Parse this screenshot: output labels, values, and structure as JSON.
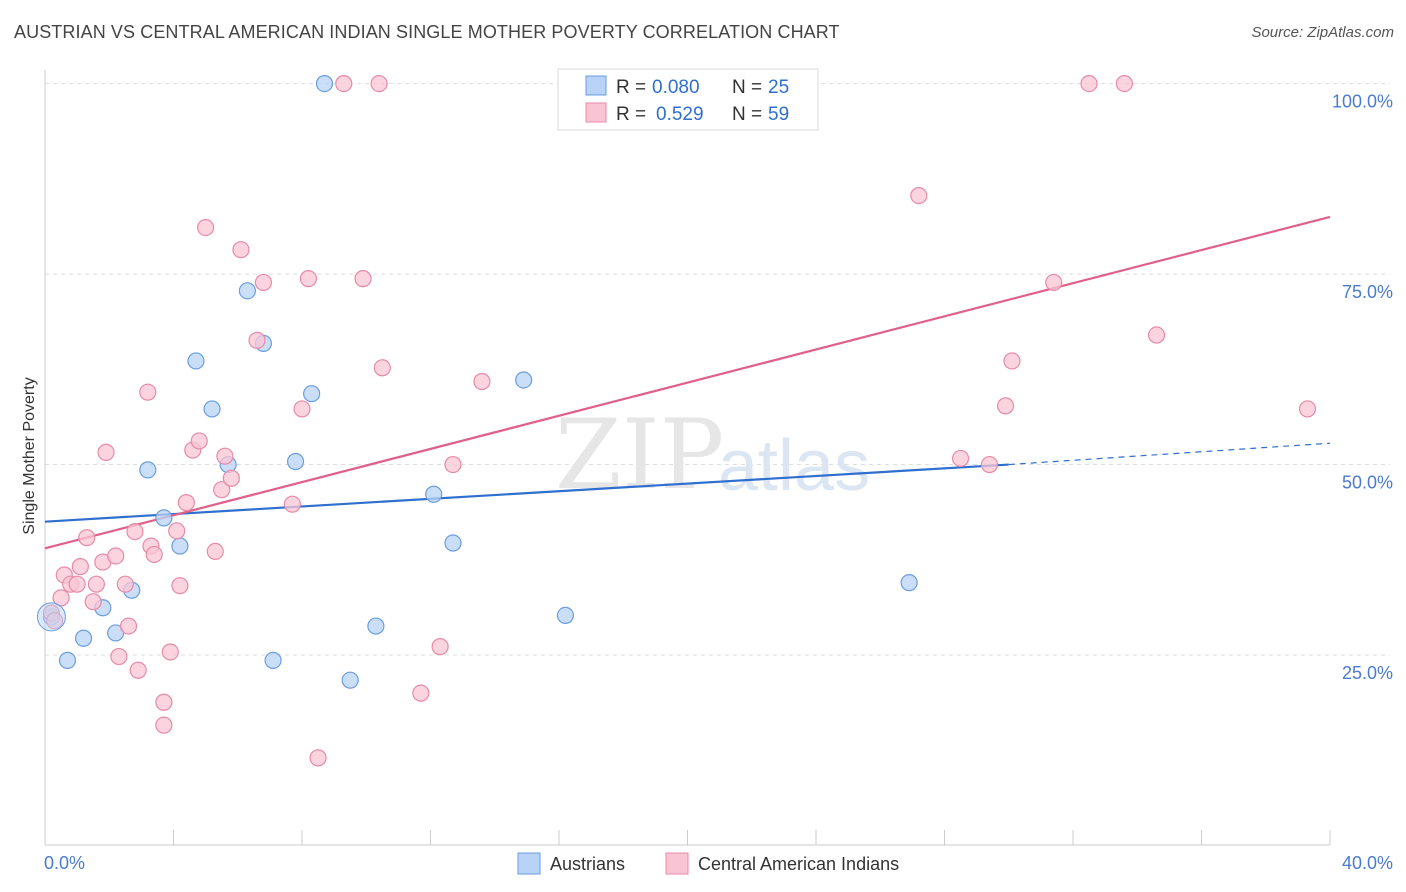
{
  "title": "AUSTRIAN VS CENTRAL AMERICAN INDIAN SINGLE MOTHER POVERTY CORRELATION CHART",
  "source": "Source: ZipAtlas.com",
  "watermark": {
    "zip": "ZIP",
    "atlas": "atlas"
  },
  "colors": {
    "blue_fill": "#b8d3f5",
    "blue_stroke": "#6a9ee0",
    "blue_line": "#2f6fcf",
    "pink_fill": "#f9c5d4",
    "pink_stroke": "#e88aa8",
    "pink_line": "#e0608a",
    "axis_text": "#4a7bd0"
  },
  "legend": {
    "rows": [
      {
        "r_label": "R = ",
        "r_value": "0.080",
        "n_label": "N = ",
        "n_value": "25",
        "series": "blue"
      },
      {
        "r_label": "R = ",
        "r_value": "0.529",
        "n_label": "N = ",
        "n_value": "59",
        "series": "pink"
      }
    ]
  },
  "chart_data": {
    "type": "scatter",
    "title": "AUSTRIAN VS CENTRAL AMERICAN INDIAN SINGLE MOTHER POVERTY CORRELATION CHART",
    "xlabel": "",
    "ylabel": "Single Mother Poverty",
    "xlim": [
      0,
      40
    ],
    "ylim": [
      0,
      105
    ],
    "x_tick_labels": [
      "0.0%",
      "40.0%"
    ],
    "y_ticks": [
      25,
      50,
      75,
      100
    ],
    "y_tick_labels": [
      "25.0%",
      "50.0%",
      "75.0%",
      "100.0%"
    ],
    "grid": true,
    "legend_position": "top-center",
    "series": [
      {
        "name": "Austrians",
        "color": "blue",
        "points": [
          [
            0.2,
            30.0
          ],
          [
            0.7,
            24.3
          ],
          [
            1.2,
            27.2
          ],
          [
            1.8,
            31.2
          ],
          [
            2.2,
            27.9
          ],
          [
            2.7,
            33.5
          ],
          [
            3.2,
            49.3
          ],
          [
            3.7,
            43.0
          ],
          [
            4.2,
            39.3
          ],
          [
            4.7,
            63.6
          ],
          [
            5.2,
            57.3
          ],
          [
            5.7,
            50.0
          ],
          [
            6.3,
            72.8
          ],
          [
            6.8,
            65.9
          ],
          [
            7.1,
            24.3
          ],
          [
            7.8,
            50.4
          ],
          [
            8.3,
            59.3
          ],
          [
            8.7,
            100.0
          ],
          [
            9.5,
            21.7
          ],
          [
            10.3,
            28.8
          ],
          [
            12.1,
            46.1
          ],
          [
            12.7,
            39.7
          ],
          [
            14.9,
            61.1
          ],
          [
            16.2,
            30.2
          ],
          [
            26.9,
            34.5
          ]
        ],
        "trend": {
          "x": [
            0,
            30
          ],
          "y": [
            42.5,
            50.0
          ],
          "dashed_to": [
            40,
            52.8
          ]
        }
      },
      {
        "name": "Central American Indians",
        "color": "pink",
        "points": [
          [
            0.2,
            30.5
          ],
          [
            0.3,
            29.5
          ],
          [
            0.5,
            32.5
          ],
          [
            0.6,
            35.5
          ],
          [
            0.8,
            34.3
          ],
          [
            1.0,
            34.3
          ],
          [
            1.1,
            36.6
          ],
          [
            1.3,
            40.4
          ],
          [
            1.5,
            32.0
          ],
          [
            1.6,
            34.3
          ],
          [
            1.8,
            37.2
          ],
          [
            1.9,
            51.6
          ],
          [
            2.2,
            38.0
          ],
          [
            2.3,
            24.8
          ],
          [
            2.5,
            34.3
          ],
          [
            2.6,
            28.8
          ],
          [
            2.8,
            41.2
          ],
          [
            2.9,
            23.0
          ],
          [
            3.2,
            59.5
          ],
          [
            3.3,
            39.3
          ],
          [
            3.4,
            38.2
          ],
          [
            3.7,
            18.8
          ],
          [
            3.7,
            15.8
          ],
          [
            3.9,
            25.4
          ],
          [
            4.1,
            41.3
          ],
          [
            4.2,
            34.1
          ],
          [
            4.4,
            45.0
          ],
          [
            4.6,
            51.9
          ],
          [
            4.8,
            53.1
          ],
          [
            5.0,
            81.1
          ],
          [
            5.3,
            38.6
          ],
          [
            5.5,
            46.7
          ],
          [
            5.6,
            51.1
          ],
          [
            5.8,
            48.2
          ],
          [
            6.1,
            78.2
          ],
          [
            6.6,
            66.3
          ],
          [
            6.8,
            73.9
          ],
          [
            7.7,
            44.8
          ],
          [
            8.0,
            57.3
          ],
          [
            8.2,
            74.4
          ],
          [
            9.3,
            100.0
          ],
          [
            9.9,
            74.4
          ],
          [
            10.4,
            100.0
          ],
          [
            10.5,
            62.7
          ],
          [
            11.7,
            20.0
          ],
          [
            12.3,
            26.1
          ],
          [
            12.7,
            50.0
          ],
          [
            13.6,
            60.9
          ],
          [
            8.5,
            11.5
          ],
          [
            27.2,
            85.3
          ],
          [
            28.5,
            50.8
          ],
          [
            29.4,
            50.0
          ],
          [
            29.9,
            57.7
          ],
          [
            30.1,
            63.6
          ],
          [
            31.4,
            73.9
          ],
          [
            32.5,
            100.0
          ],
          [
            33.6,
            100.0
          ],
          [
            34.6,
            67.0
          ],
          [
            39.3,
            57.3
          ]
        ],
        "trend": {
          "x": [
            0,
            40
          ],
          "y": [
            39.0,
            82.5
          ]
        }
      }
    ],
    "bottom_legend": [
      "Austrians",
      "Central American Indians"
    ]
  }
}
